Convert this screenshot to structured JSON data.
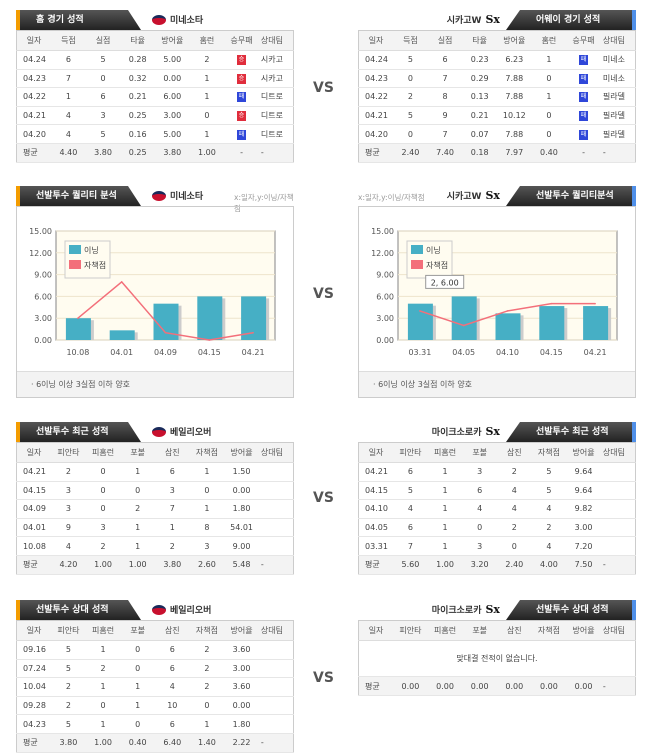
{
  "vs": "VS",
  "colors": {
    "bar": "#46afc5",
    "line": "#f36f7a",
    "win": "#e02d3c",
    "loss": "#2f47d9"
  },
  "home_team": {
    "name": "미네소타",
    "logo": "twins-logo"
  },
  "away_team": {
    "name": "시카고W",
    "logo": "white-sox-logo"
  },
  "game_record": {
    "left": {
      "title": "홈 경기 성적",
      "team": "미네소타",
      "headers": [
        "일자",
        "득점",
        "실점",
        "타율",
        "방어율",
        "홈런",
        "승무패",
        "상대팀"
      ],
      "rows": [
        [
          "04.24",
          "6",
          "5",
          "0.28",
          "5.00",
          "2",
          "승",
          "시카고"
        ],
        [
          "04.23",
          "7",
          "0",
          "0.32",
          "0.00",
          "1",
          "승",
          "시카고"
        ],
        [
          "04.22",
          "1",
          "6",
          "0.21",
          "6.00",
          "1",
          "패",
          "디트로"
        ],
        [
          "04.21",
          "4",
          "3",
          "0.25",
          "3.00",
          "0",
          "승",
          "디트로"
        ],
        [
          "04.20",
          "4",
          "5",
          "0.16",
          "5.00",
          "1",
          "패",
          "디트로"
        ]
      ],
      "avg": [
        "평균",
        "4.40",
        "3.80",
        "0.25",
        "3.80",
        "1.00",
        "-",
        "-"
      ]
    },
    "right": {
      "title": "어웨이 경기 성적",
      "team": "시카고W",
      "headers": [
        "일자",
        "득점",
        "실점",
        "타율",
        "방어율",
        "홈런",
        "승무패",
        "상대팀"
      ],
      "rows": [
        [
          "04.24",
          "5",
          "6",
          "0.23",
          "6.23",
          "1",
          "패",
          "미네소"
        ],
        [
          "04.23",
          "0",
          "7",
          "0.29",
          "7.88",
          "0",
          "패",
          "미네소"
        ],
        [
          "04.22",
          "2",
          "8",
          "0.13",
          "7.88",
          "1",
          "패",
          "필라델"
        ],
        [
          "04.21",
          "5",
          "9",
          "0.21",
          "10.12",
          "0",
          "패",
          "필라델"
        ],
        [
          "04.20",
          "0",
          "7",
          "0.07",
          "7.88",
          "0",
          "패",
          "필라델"
        ]
      ],
      "avg": [
        "평균",
        "2.40",
        "7.40",
        "0.18",
        "7.97",
        "0.40",
        "-",
        "-"
      ]
    }
  },
  "quality": {
    "axis_note": "x:일자,y:이닝/자책점",
    "left": {
      "title": "선발투수 퀄리티 분석",
      "team": "미네소타",
      "note": "6이닝 이상 3실점 이하 양호"
    },
    "right": {
      "title": "선발투수 퀄리티분석",
      "team": "시카고W",
      "note": "6이닝 이상 3실점 이하 양호",
      "tooltip": "2, 6.00"
    }
  },
  "chart_data": [
    {
      "type": "bar",
      "title": "선발투수 퀄리티 분석 - 미네소타",
      "categories": [
        "10.08",
        "04.01",
        "04.09",
        "04.15",
        "04.21"
      ],
      "series": [
        {
          "name": "이닝",
          "type": "bar",
          "values": [
            3,
            1.33,
            5,
            6,
            6
          ]
        },
        {
          "name": "자책점",
          "type": "line",
          "values": [
            3,
            8,
            1,
            0,
            1
          ]
        }
      ],
      "ylim": [
        0,
        15
      ],
      "yticks": [
        "0.00",
        "3.00",
        "6.00",
        "9.00",
        "12.00",
        "15.00"
      ],
      "legend": "top-left",
      "grid": true
    },
    {
      "type": "bar",
      "title": "선발투수 퀄리티분석 - 시카고W",
      "categories": [
        "03.31",
        "04.05",
        "04.10",
        "04.15",
        "04.21"
      ],
      "series": [
        {
          "name": "이닝",
          "type": "bar",
          "values": [
            5,
            6,
            3.67,
            4.67,
            4.67
          ]
        },
        {
          "name": "자책점",
          "type": "line",
          "values": [
            4,
            2,
            4,
            5,
            5
          ]
        }
      ],
      "ylim": [
        0,
        15
      ],
      "yticks": [
        "0.00",
        "3.00",
        "6.00",
        "9.00",
        "12.00",
        "15.00"
      ],
      "legend": "top-left",
      "grid": true
    }
  ],
  "recent": {
    "left": {
      "title": "선발투수 최근 성적",
      "team": "베일리오버",
      "headers": [
        "일자",
        "피안타",
        "피홈런",
        "포볼",
        "삼진",
        "자책점",
        "방어율",
        "상대팀"
      ],
      "rows": [
        [
          "04.21",
          "2",
          "0",
          "1",
          "6",
          "1",
          "1.50",
          ""
        ],
        [
          "04.15",
          "3",
          "0",
          "0",
          "3",
          "0",
          "0.00",
          ""
        ],
        [
          "04.09",
          "3",
          "0",
          "2",
          "7",
          "1",
          "1.80",
          ""
        ],
        [
          "04.01",
          "9",
          "3",
          "1",
          "1",
          "8",
          "54.01",
          ""
        ],
        [
          "10.08",
          "4",
          "2",
          "1",
          "2",
          "3",
          "9.00",
          ""
        ]
      ],
      "avg": [
        "평균",
        "4.20",
        "1.00",
        "1.00",
        "3.80",
        "2.60",
        "5.48",
        "-"
      ]
    },
    "right": {
      "title": "선발투수 최근 성적",
      "team": "마이크소로카",
      "headers": [
        "일자",
        "피안타",
        "피홈런",
        "포볼",
        "삼진",
        "자책점",
        "방어율",
        "상대팀"
      ],
      "rows": [
        [
          "04.21",
          "6",
          "1",
          "3",
          "2",
          "5",
          "9.64",
          ""
        ],
        [
          "04.15",
          "5",
          "1",
          "6",
          "4",
          "5",
          "9.64",
          ""
        ],
        [
          "04.10",
          "4",
          "1",
          "4",
          "4",
          "4",
          "9.82",
          ""
        ],
        [
          "04.05",
          "6",
          "1",
          "0",
          "2",
          "2",
          "3.00",
          ""
        ],
        [
          "03.31",
          "7",
          "1",
          "3",
          "0",
          "4",
          "7.20",
          ""
        ]
      ],
      "avg": [
        "평균",
        "5.60",
        "1.00",
        "3.20",
        "2.40",
        "4.00",
        "7.50",
        "-"
      ]
    }
  },
  "versus": {
    "left": {
      "title": "선발투수 상대 성적",
      "team": "베일리오버",
      "headers": [
        "일자",
        "피안타",
        "피홈런",
        "포볼",
        "삼진",
        "자책점",
        "방어율",
        "상대팀"
      ],
      "rows": [
        [
          "09.16",
          "5",
          "1",
          "0",
          "6",
          "2",
          "3.60",
          ""
        ],
        [
          "07.24",
          "5",
          "2",
          "0",
          "6",
          "2",
          "3.00",
          ""
        ],
        [
          "10.04",
          "2",
          "1",
          "1",
          "4",
          "2",
          "3.60",
          ""
        ],
        [
          "09.28",
          "2",
          "0",
          "1",
          "10",
          "0",
          "0.00",
          ""
        ],
        [
          "04.23",
          "5",
          "1",
          "0",
          "6",
          "1",
          "1.80",
          ""
        ]
      ],
      "avg": [
        "평균",
        "3.80",
        "1.00",
        "0.40",
        "6.40",
        "1.40",
        "2.22",
        "-"
      ]
    },
    "right": {
      "title": "선발투수 상대 성적",
      "team": "마이크소로카",
      "headers": [
        "일자",
        "피안타",
        "피홈런",
        "포볼",
        "삼진",
        "자책점",
        "방어율",
        "상대팀"
      ],
      "rows": [],
      "empty": "맞대결 전적이 없습니다.",
      "avg": [
        "평균",
        "0.00",
        "0.00",
        "0.00",
        "0.00",
        "0.00",
        "0.00",
        "-"
      ]
    }
  }
}
